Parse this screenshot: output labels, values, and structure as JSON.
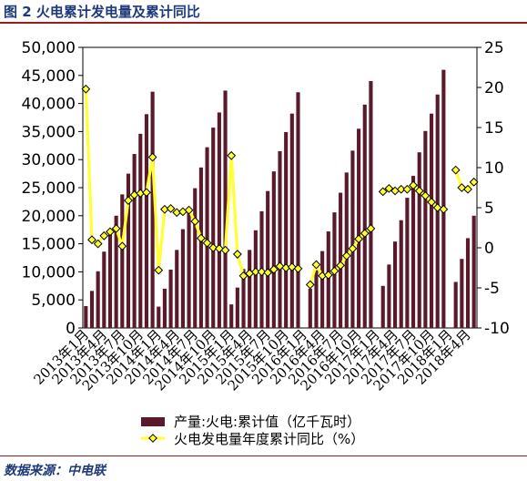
{
  "figure_title": "图 2  火电累计发电量及累计同比",
  "source_text": "数据来源：中电联",
  "colors": {
    "bar": "#5b1a2c",
    "line": "#ffff33",
    "marker_fill": "#ffff33",
    "marker_stroke": "#000000",
    "title": "#1f3a7a",
    "rule": "#9b1c1c"
  },
  "chart_data": {
    "type": "bar+line",
    "xlabel": "",
    "ylabel": "",
    "y_left": {
      "min": 0,
      "max": 50000,
      "ticks": [
        "0",
        "5,000",
        "10,000",
        "15,000",
        "20,000",
        "25,000",
        "30,000",
        "35,000",
        "40,000",
        "45,000",
        "50,000"
      ]
    },
    "y_right": {
      "min": -10,
      "max": 25,
      "ticks": [
        "-10",
        "-5",
        "0",
        "5",
        "10",
        "15",
        "20",
        "25"
      ]
    },
    "x_labels": [
      "2013年1月",
      "2013年4月",
      "2013年7月",
      "2013年10月",
      "2014年1月",
      "2014年4月",
      "2014年7月",
      "2014年10月",
      "2015年1月",
      "2015年4月",
      "2015年7月",
      "2015年10月",
      "2016年1月",
      "2016年4月",
      "2016年7月",
      "2016年10月",
      "2017年1月",
      "2017年4月",
      "2017年7月",
      "2017年10月",
      "2018年1月",
      "2018年4月"
    ],
    "legend_position": "bottom",
    "series": [
      {
        "name": "产量:火电:累计值（亿千瓦时）",
        "type": "bar",
        "axis": "left",
        "values": [
          3900,
          6600,
          10100,
          13600,
          16800,
          20000,
          23800,
          27500,
          31000,
          34600,
          38100,
          42100,
          3800,
          7000,
          10400,
          13900,
          17600,
          21000,
          24900,
          28600,
          32200,
          35700,
          38400,
          42300,
          4200,
          7200,
          10500,
          13900,
          17400,
          20800,
          24400,
          27900,
          31500,
          34900,
          38200,
          42000,
          null,
          7000,
          10300,
          13700,
          17200,
          20600,
          24100,
          27700,
          31600,
          35500,
          39800,
          44000,
          null,
          7500,
          11300,
          15400,
          19200,
          23200,
          27100,
          31300,
          35100,
          38200,
          41600,
          46000,
          null,
          8200,
          12300,
          16000,
          20000
        ]
      },
      {
        "name": "火电发电量年度累计同比（%）",
        "type": "line",
        "axis": "right",
        "values": [
          19.8,
          1.0,
          0.5,
          1.5,
          2.0,
          2.4,
          0.2,
          5.9,
          6.6,
          6.8,
          6.9,
          11.3,
          -2.8,
          4.8,
          4.9,
          4.4,
          4.5,
          4.7,
          3.3,
          1.2,
          0.6,
          0.0,
          -0.1,
          -0.3,
          11.5,
          -0.8,
          -3.5,
          -3.2,
          -3.0,
          -3.0,
          -3.1,
          -2.7,
          -2.3,
          -2.5,
          -2.4,
          -2.6,
          null,
          -4.6,
          -2.1,
          -3.5,
          -3.4,
          -2.9,
          -2.2,
          -1.0,
          -0.1,
          1.1,
          1.8,
          2.4,
          null,
          7.0,
          7.4,
          7.1,
          7.3,
          7.3,
          7.8,
          7.1,
          6.5,
          5.7,
          5.0,
          4.8,
          null,
          9.7,
          7.5,
          7.3,
          8.2
        ]
      }
    ]
  }
}
